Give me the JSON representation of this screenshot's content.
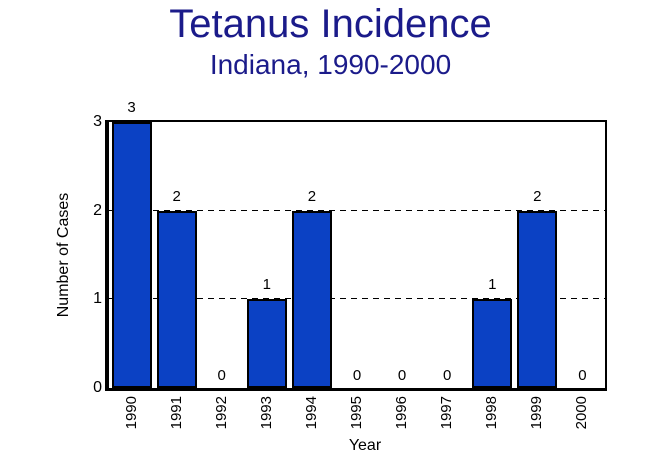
{
  "chart_data": {
    "type": "bar",
    "title": "Tetanus Incidence",
    "subtitle": "Indiana, 1990-2000",
    "categories": [
      "1990",
      "1991",
      "1992",
      "1993",
      "1994",
      "1995",
      "1996",
      "1997",
      "1998",
      "1999",
      "2000"
    ],
    "values": [
      3,
      2,
      0,
      1,
      2,
      0,
      0,
      0,
      1,
      2,
      0
    ],
    "xlabel": "Year",
    "ylabel": "Number of Cases",
    "yticks": [
      0,
      1,
      2,
      3
    ],
    "ylim": [
      0,
      3
    ],
    "data_labels_shown": true,
    "legend": "none",
    "gridlines": {
      "dashed_at": [
        1,
        2
      ],
      "solid_border_top_at": 3
    },
    "colors": {
      "title_text": "#1b1b8a",
      "bar_fill": "#0b41c4",
      "bar_border": "#000000",
      "axis_text": "#000000",
      "background": "#ffffff"
    }
  }
}
